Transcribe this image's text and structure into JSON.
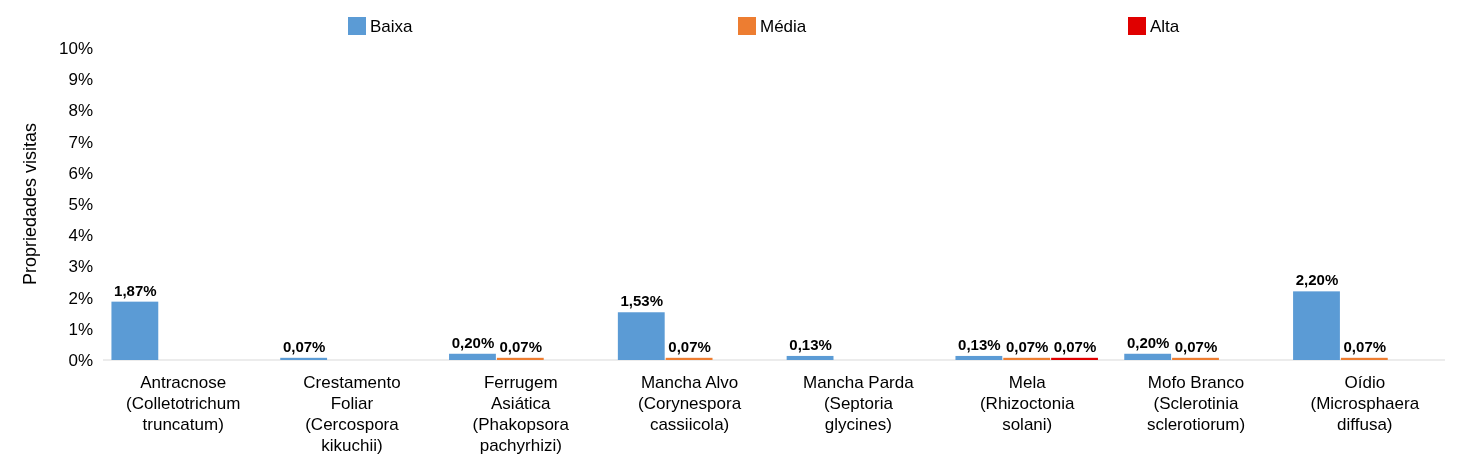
{
  "chart_data": {
    "type": "bar",
    "ylabel": "Propriedades visitas",
    "categories": [
      "Antracnose (Colletotrichum truncatum)",
      "Crestamento Foliar (Cercospora kikuchii)",
      "Ferrugem Asiática (Phakopsora pachyrhizi)",
      "Mancha Alvo (Corynespora cassiicola)",
      "Mancha Parda (Septoria glycines)",
      "Mela (Rhizoctonia solani)",
      "Mofo Branco (Sclerotinia sclerotiorum)",
      "Oídio (Microsphaera diffusa)"
    ],
    "series": [
      {
        "name": "Baixa",
        "color": "#5b9bd5",
        "values": [
          1.87,
          0.07,
          0.2,
          1.53,
          0.13,
          0.13,
          0.2,
          2.2
        ],
        "value_labels": [
          "1,87%",
          "0,07%",
          "0,20%",
          "1,53%",
          "0,13%",
          "0,13%",
          "0,20%",
          "2,20%"
        ]
      },
      {
        "name": "Média",
        "color": "#ed7d31",
        "values": [
          null,
          null,
          0.07,
          0.07,
          null,
          0.07,
          0.07,
          0.07
        ],
        "value_labels": [
          null,
          null,
          "0,07%",
          "0,07%",
          null,
          "0,07%",
          "0,07%",
          "0,07%"
        ]
      },
      {
        "name": "Alta",
        "color": "#e00000",
        "values": [
          null,
          null,
          null,
          null,
          null,
          0.07,
          null,
          null
        ],
        "value_labels": [
          null,
          null,
          null,
          null,
          null,
          "0,07%",
          null,
          null
        ]
      }
    ],
    "ylim": [
      0,
      10
    ],
    "yticks": [
      {
        "value": 0,
        "label": "0%"
      },
      {
        "value": 1,
        "label": "1%"
      },
      {
        "value": 2,
        "label": "2%"
      },
      {
        "value": 3,
        "label": "3%"
      },
      {
        "value": 4,
        "label": "4%"
      },
      {
        "value": 5,
        "label": "5%"
      },
      {
        "value": 6,
        "label": "6%"
      },
      {
        "value": 7,
        "label": "7%"
      },
      {
        "value": 8,
        "label": "8%"
      },
      {
        "value": 9,
        "label": "9%"
      },
      {
        "value": 10,
        "label": "10%"
      }
    ],
    "legend": "top",
    "grid": false
  }
}
